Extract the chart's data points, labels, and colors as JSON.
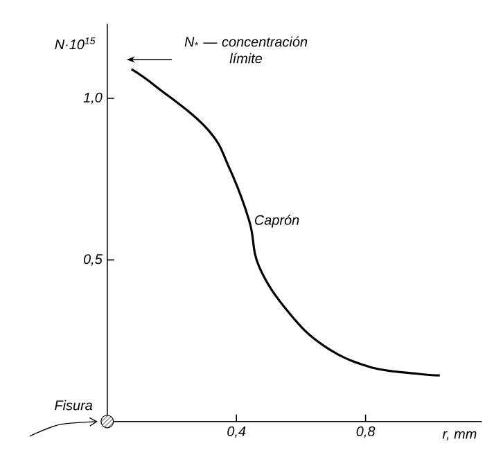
{
  "chart_data": {
    "type": "line",
    "xlabel": "r, mm",
    "ylabel": "N·10$^{15}$",
    "xlim": [
      0,
      1.16
    ],
    "ylim": [
      0,
      1.23
    ],
    "xticks": [
      {
        "value": 0.4,
        "label": "0,4"
      },
      {
        "value": 0.8,
        "label": "0,8"
      }
    ],
    "yticks": [
      {
        "value": 0.5,
        "label": "0,5"
      },
      {
        "value": 1.0,
        "label": "1,0"
      }
    ],
    "series": [
      {
        "name": "Caprón",
        "color": "#000000",
        "x": [
          0.075,
          0.153,
          0.31,
          0.38,
          0.44,
          0.47,
          0.56,
          0.67,
          0.81,
          0.96,
          1.03
        ],
        "values": [
          1.09,
          1.035,
          0.905,
          0.78,
          0.62,
          0.48,
          0.34,
          0.235,
          0.17,
          0.148,
          0.143
        ]
      }
    ],
    "annotations": [
      {
        "text": "Fisura",
        "x": 0,
        "y": 0
      },
      "N$_{*}$ — concentración límite"
    ]
  }
}
